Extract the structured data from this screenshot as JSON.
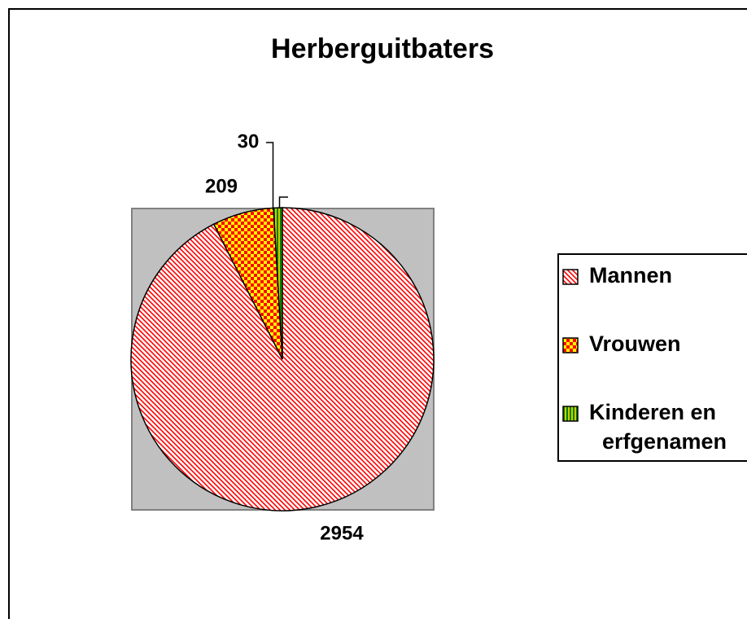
{
  "chart_data": {
    "type": "pie",
    "title": "Herberguitbaters",
    "categories": [
      "Mannen",
      "Vrouwen",
      "Kinderen en erfgenamen"
    ],
    "values": [
      2954,
      209,
      30
    ],
    "colors": [
      "#ff0000",
      "#ff0000",
      "#008000"
    ]
  }
}
